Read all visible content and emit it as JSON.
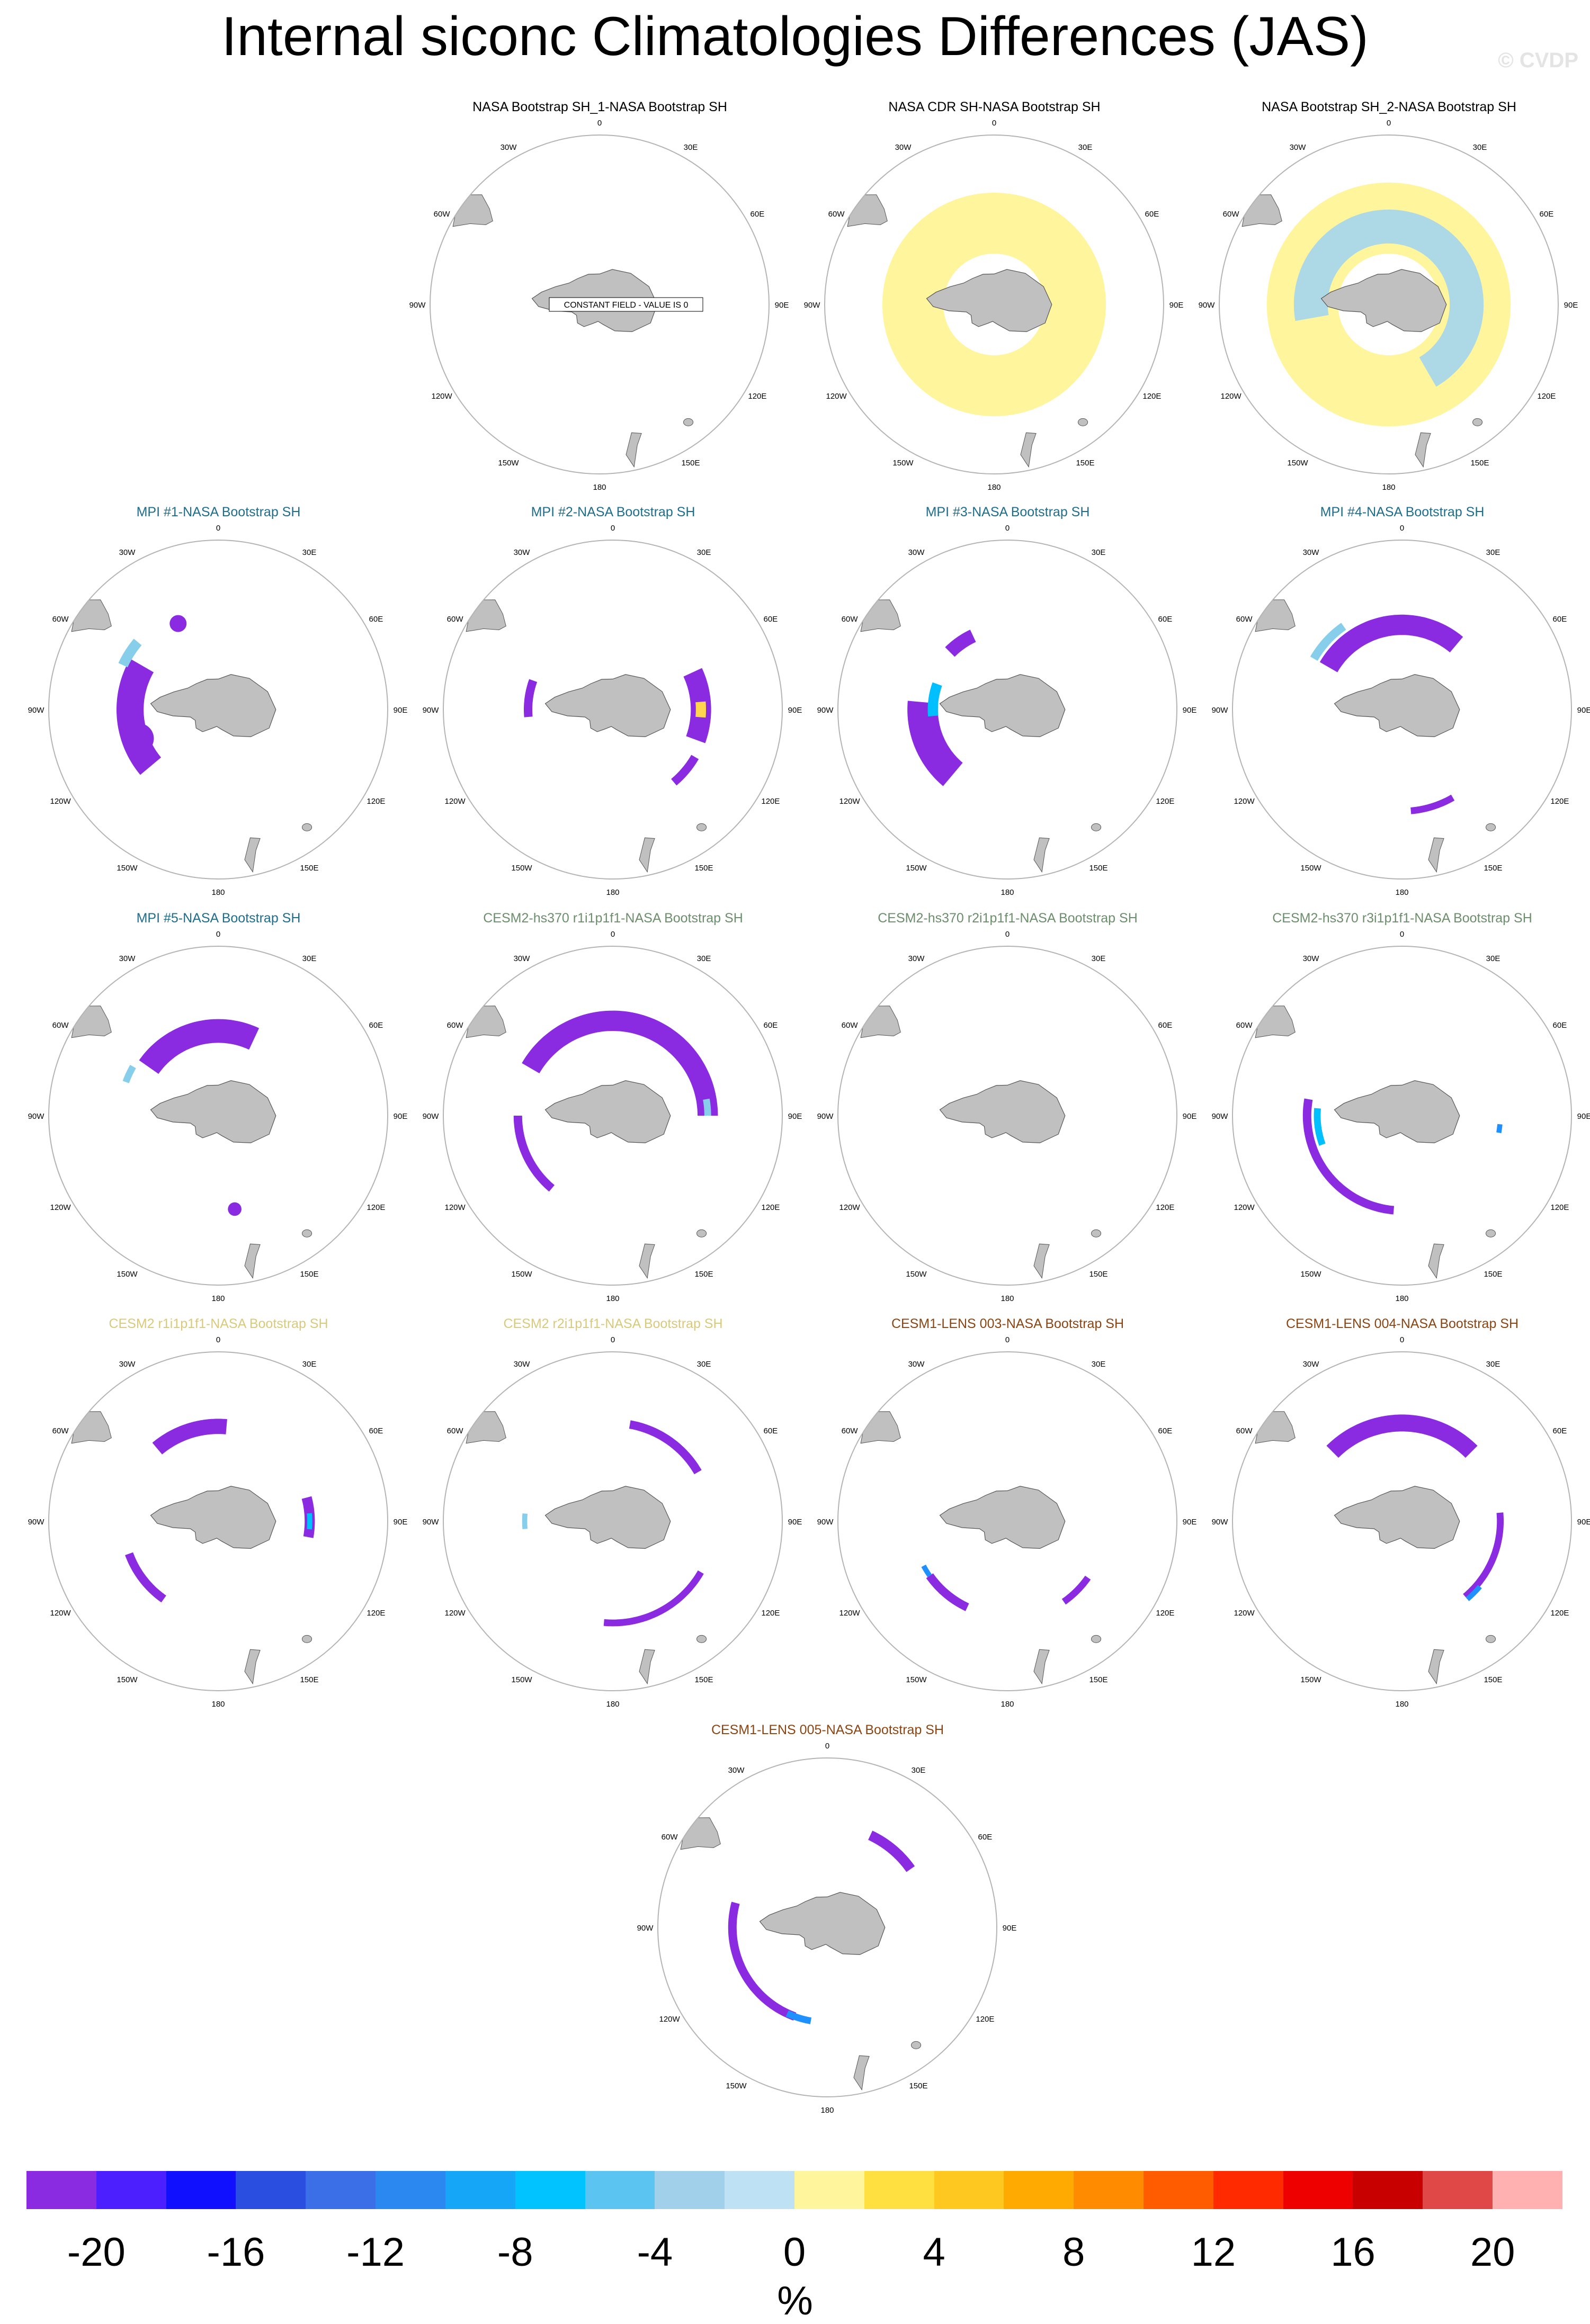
{
  "title": "Internal siconc Climatologies Differences (JAS)",
  "watermark": "© CVDP",
  "meridian_labels": [
    "0",
    "30E",
    "60E",
    "90E",
    "120E",
    "150E",
    "180",
    "150W",
    "120W",
    "90W",
    "60W",
    "30W"
  ],
  "colors": {
    "land": "#c0c0c0",
    "circle": "#b4b4b4",
    "title_obs": "#000000",
    "title_mpi": "#1d6e8c",
    "title_cesm2hs": "#6b8e6b",
    "title_cesm2": "#d9c97a",
    "title_cesm1": "#8b4513",
    "decrease_strong": "#8a2be2",
    "decrease_weak": "#add8e6",
    "increase_weak": "#fff59d"
  },
  "panels": [
    {
      "id": "obs-bootstrap-sh1",
      "title": "NASA Bootstrap SH_1-NASA Bootstrap SH",
      "title_color": "#000000",
      "note": "CONSTANT FIELD - VALUE IS 0",
      "features": []
    },
    {
      "id": "obs-cdr",
      "title": "NASA CDR SH-NASA Bootstrap SH",
      "title_color": "#000000",
      "features": [
        {
          "kind": "ring",
          "color": "#fff59d",
          "inner": 0.3,
          "outer": 0.66,
          "lon_start": -160,
          "lon_end": 200
        }
      ]
    },
    {
      "id": "obs-bootstrap-sh2",
      "title": "NASA Bootstrap SH_2-NASA Bootstrap SH",
      "title_color": "#000000",
      "features": [
        {
          "kind": "ring",
          "color": "#fff59d",
          "inner": 0.3,
          "outer": 0.72,
          "lon_start": -160,
          "lon_end": 200
        },
        {
          "kind": "ring",
          "color": "#add8e6",
          "inner": 0.36,
          "outer": 0.56,
          "lon_start": -100,
          "lon_end": 150
        }
      ]
    },
    {
      "id": "mpi-1",
      "title": "MPI #1-NASA Bootstrap SH",
      "title_color": "#1d6e8c",
      "features": [
        {
          "kind": "arc",
          "color": "#8a2be2",
          "r": 0.52,
          "width": 0.08,
          "lon_start": -130,
          "lon_end": -60
        },
        {
          "kind": "arc",
          "color": "#87ceeb",
          "r": 0.62,
          "width": 0.03,
          "lon_start": -65,
          "lon_end": -50
        },
        {
          "kind": "blob",
          "color": "#8a2be2",
          "lon": -110,
          "r": 0.5,
          "size": 0.09
        },
        {
          "kind": "blob",
          "color": "#8a2be2",
          "lon": -25,
          "r": 0.56,
          "size": 0.05
        }
      ]
    },
    {
      "id": "mpi-2",
      "title": "MPI #2-NASA Bootstrap SH",
      "title_color": "#1d6e8c",
      "features": [
        {
          "kind": "arc",
          "color": "#8a2be2",
          "r": 0.52,
          "width": 0.06,
          "lon_start": 65,
          "lon_end": 110
        },
        {
          "kind": "arc",
          "color": "#ffd54f",
          "r": 0.52,
          "width": 0.03,
          "lon_start": 85,
          "lon_end": 95
        },
        {
          "kind": "arc",
          "color": "#8a2be2",
          "r": 0.5,
          "width": 0.025,
          "lon_start": -95,
          "lon_end": -70
        },
        {
          "kind": "arc",
          "color": "#8a2be2",
          "r": 0.56,
          "width": 0.025,
          "lon_start": 120,
          "lon_end": 140
        }
      ]
    },
    {
      "id": "mpi-3",
      "title": "MPI #3-NASA Bootstrap SH",
      "title_color": "#1d6e8c",
      "features": [
        {
          "kind": "arc",
          "color": "#8a2be2",
          "r": 0.5,
          "width": 0.09,
          "lon_start": -140,
          "lon_end": -85
        },
        {
          "kind": "arc",
          "color": "#00bfff",
          "r": 0.44,
          "width": 0.03,
          "lon_start": -95,
          "lon_end": -70
        },
        {
          "kind": "arc",
          "color": "#8a2be2",
          "r": 0.48,
          "width": 0.04,
          "lon_start": -45,
          "lon_end": -25
        }
      ]
    },
    {
      "id": "mpi-4",
      "title": "MPI #4-NASA Bootstrap SH",
      "title_color": "#1d6e8c",
      "features": [
        {
          "kind": "arc",
          "color": "#8a2be2",
          "r": 0.5,
          "width": 0.06,
          "lon_start": -60,
          "lon_end": 40
        },
        {
          "kind": "arc",
          "color": "#87ceeb",
          "r": 0.6,
          "width": 0.025,
          "lon_start": -60,
          "lon_end": -35
        },
        {
          "kind": "arc",
          "color": "#8a2be2",
          "r": 0.6,
          "width": 0.02,
          "lon_start": 150,
          "lon_end": 175
        }
      ]
    },
    {
      "id": "mpi-5",
      "title": "MPI #5-NASA Bootstrap SH",
      "title_color": "#1d6e8c",
      "features": [
        {
          "kind": "arc",
          "color": "#8a2be2",
          "r": 0.5,
          "width": 0.07,
          "lon_start": -55,
          "lon_end": 25
        },
        {
          "kind": "arc",
          "color": "#87ceeb",
          "r": 0.58,
          "width": 0.02,
          "lon_start": -70,
          "lon_end": -60
        },
        {
          "kind": "blob",
          "color": "#8a2be2",
          "lon": 170,
          "r": 0.56,
          "size": 0.04
        }
      ]
    },
    {
      "id": "cesm2hs-r1",
      "title": "CESM2-hs370 r1i1p1f1-NASA Bootstrap SH",
      "title_color": "#6b8e6b",
      "features": [
        {
          "kind": "arc",
          "color": "#8a2be2",
          "r": 0.56,
          "width": 0.06,
          "lon_start": -60,
          "lon_end": 90
        },
        {
          "kind": "arc",
          "color": "#8a2be2",
          "r": 0.56,
          "width": 0.025,
          "lon_start": -140,
          "lon_end": -90
        },
        {
          "kind": "arc",
          "color": "#87ceeb",
          "r": 0.56,
          "width": 0.02,
          "lon_start": 80,
          "lon_end": 90
        }
      ]
    },
    {
      "id": "cesm2hs-r2",
      "title": "CESM2-hs370 r2i1p1f1-NASA Bootstrap SH",
      "title_color": "#6b8e6b",
      "features": []
    },
    {
      "id": "cesm2hs-r3",
      "title": "CESM2-hs370 r3i1p1f1-NASA Bootstrap SH",
      "title_color": "#6b8e6b",
      "features": [
        {
          "kind": "arc",
          "color": "#8a2be2",
          "r": 0.56,
          "width": 0.025,
          "lon_start": -175,
          "lon_end": -80
        },
        {
          "kind": "arc",
          "color": "#00bfff",
          "r": 0.5,
          "width": 0.02,
          "lon_start": -110,
          "lon_end": -85
        },
        {
          "kind": "arc",
          "color": "#1e90ff",
          "r": 0.58,
          "width": 0.015,
          "lon_start": 95,
          "lon_end": 100
        }
      ]
    },
    {
      "id": "cesm2-r1",
      "title": "CESM2 r1i1p1f1-NASA Bootstrap SH",
      "title_color": "#d9c97a",
      "features": [
        {
          "kind": "arc",
          "color": "#8a2be2",
          "r": 0.56,
          "width": 0.045,
          "lon_start": -40,
          "lon_end": 5
        },
        {
          "kind": "arc",
          "color": "#8a2be2",
          "r": 0.56,
          "width": 0.025,
          "lon_start": -145,
          "lon_end": -110
        },
        {
          "kind": "arc",
          "color": "#8a2be2",
          "r": 0.54,
          "width": 0.03,
          "lon_start": 75,
          "lon_end": 100
        },
        {
          "kind": "arc",
          "color": "#00bfff",
          "r": 0.54,
          "width": 0.015,
          "lon_start": 85,
          "lon_end": 95
        }
      ]
    },
    {
      "id": "cesm2-r2",
      "title": "CESM2 r2i1p1f1-NASA Bootstrap SH",
      "title_color": "#d9c97a",
      "features": [
        {
          "kind": "arc",
          "color": "#8a2be2",
          "r": 0.58,
          "width": 0.025,
          "lon_start": 10,
          "lon_end": 60
        },
        {
          "kind": "arc",
          "color": "#8a2be2",
          "r": 0.6,
          "width": 0.02,
          "lon_start": 120,
          "lon_end": 185
        },
        {
          "kind": "arc",
          "color": "#87ceeb",
          "r": 0.52,
          "width": 0.015,
          "lon_start": -95,
          "lon_end": -85
        }
      ]
    },
    {
      "id": "cesm1-003",
      "title": "CESM1-LENS 003-NASA Bootstrap SH",
      "title_color": "#8b4513",
      "features": [
        {
          "kind": "arc",
          "color": "#8a2be2",
          "r": 0.56,
          "width": 0.025,
          "lon_start": -155,
          "lon_end": -125
        },
        {
          "kind": "arc",
          "color": "#8a2be2",
          "r": 0.58,
          "width": 0.02,
          "lon_start": 125,
          "lon_end": 145
        },
        {
          "kind": "arc",
          "color": "#1e90ff",
          "r": 0.56,
          "width": 0.015,
          "lon_start": -125,
          "lon_end": -118
        }
      ]
    },
    {
      "id": "cesm1-004",
      "title": "CESM1-LENS 004-NASA Bootstrap SH",
      "title_color": "#8b4513",
      "features": [
        {
          "kind": "arc",
          "color": "#8a2be2",
          "r": 0.58,
          "width": 0.05,
          "lon_start": -45,
          "lon_end": 45
        },
        {
          "kind": "arc",
          "color": "#8a2be2",
          "r": 0.58,
          "width": 0.02,
          "lon_start": 85,
          "lon_end": 140
        },
        {
          "kind": "arc",
          "color": "#1e90ff",
          "r": 0.6,
          "width": 0.015,
          "lon_start": 130,
          "lon_end": 140
        }
      ]
    },
    {
      "id": "cesm1-005",
      "title": "CESM1-LENS 005-NASA Bootstrap SH",
      "title_color": "#8b4513",
      "features": [
        {
          "kind": "arc",
          "color": "#8a2be2",
          "r": 0.6,
          "width": 0.03,
          "lon_start": 25,
          "lon_end": 55
        },
        {
          "kind": "arc",
          "color": "#8a2be2",
          "r": 0.56,
          "width": 0.025,
          "lon_start": -160,
          "lon_end": -75
        },
        {
          "kind": "arc",
          "color": "#1e90ff",
          "r": 0.56,
          "width": 0.02,
          "lon_start": -170,
          "lon_end": -155
        }
      ]
    }
  ],
  "colorbar": {
    "colors": [
      "#8a2be2",
      "#4b1fff",
      "#1010ff",
      "#2a4fe0",
      "#3a6fe8",
      "#2a88f0",
      "#16a6f8",
      "#00c3ff",
      "#5cc4f0",
      "#a0d0ea",
      "#bee2f3",
      "#fff59d",
      "#ffe040",
      "#ffc820",
      "#ffaa00",
      "#ff8c00",
      "#ff5c00",
      "#ff2a00",
      "#ee0000",
      "#c80000",
      "#e04848",
      "#ffb0b0"
    ],
    "tick_labels": [
      "-20",
      "-16",
      "-12",
      "-8",
      "-4",
      "0",
      "4",
      "8",
      "12",
      "16",
      "20"
    ],
    "units": "%"
  },
  "chart_data": {
    "type": "heatmap",
    "title": "Internal siconc Climatologies Differences (JAS)",
    "variable": "siconc",
    "season": "JAS",
    "projection": "south polar stereographic",
    "units": "%",
    "color_range": [
      -21,
      21
    ],
    "contour_levels": [
      -20,
      -18,
      -16,
      -14,
      -12,
      -10,
      -8,
      -6,
      -4,
      -2,
      0,
      2,
      4,
      6,
      8,
      10,
      12,
      14,
      16,
      18,
      20
    ],
    "panel_titles": [
      "NASA Bootstrap SH_1-NASA Bootstrap SH",
      "NASA CDR SH-NASA Bootstrap SH",
      "NASA Bootstrap SH_2-NASA Bootstrap SH",
      "MPI #1-NASA Bootstrap SH",
      "MPI #2-NASA Bootstrap SH",
      "MPI #3-NASA Bootstrap SH",
      "MPI #4-NASA Bootstrap SH",
      "MPI #5-NASA Bootstrap SH",
      "CESM2-hs370 r1i1p1f1-NASA Bootstrap SH",
      "CESM2-hs370 r2i1p1f1-NASA Bootstrap SH",
      "CESM2-hs370 r3i1p1f1-NASA Bootstrap SH",
      "CESM2 r1i1p1f1-NASA Bootstrap SH",
      "CESM2 r2i1p1f1-NASA Bootstrap SH",
      "CESM1-LENS 003-NASA Bootstrap SH",
      "CESM1-LENS 004-NASA Bootstrap SH",
      "CESM1-LENS 005-NASA Bootstrap SH"
    ]
  }
}
